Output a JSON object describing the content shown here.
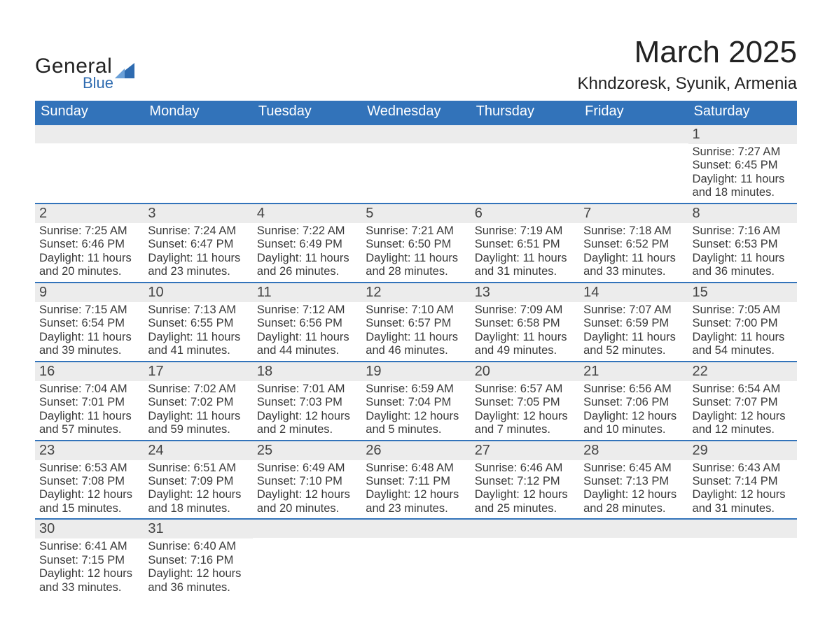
{
  "logo": {
    "word1": "General",
    "word2": "Blue",
    "accent_color": "#2e6bb0"
  },
  "title": "March 2025",
  "location": "Khndzoresk, Syunik, Armenia",
  "colors": {
    "header_bg": "#3273ba",
    "header_fg": "#ffffff",
    "daynum_bg": "#ececec",
    "row_border": "#3273ba",
    "text": "#3a3a3a"
  },
  "typography": {
    "title_fontsize": 44,
    "location_fontsize": 24,
    "header_fontsize": 20,
    "cell_fontsize": 16.5
  },
  "day_headers": [
    "Sunday",
    "Monday",
    "Tuesday",
    "Wednesday",
    "Thursday",
    "Friday",
    "Saturday"
  ],
  "weeks": [
    [
      {
        "n": "",
        "sr": "",
        "ss": "",
        "dl1": "",
        "dl2": ""
      },
      {
        "n": "",
        "sr": "",
        "ss": "",
        "dl1": "",
        "dl2": ""
      },
      {
        "n": "",
        "sr": "",
        "ss": "",
        "dl1": "",
        "dl2": ""
      },
      {
        "n": "",
        "sr": "",
        "ss": "",
        "dl1": "",
        "dl2": ""
      },
      {
        "n": "",
        "sr": "",
        "ss": "",
        "dl1": "",
        "dl2": ""
      },
      {
        "n": "",
        "sr": "",
        "ss": "",
        "dl1": "",
        "dl2": ""
      },
      {
        "n": "1",
        "sr": "Sunrise: 7:27 AM",
        "ss": "Sunset: 6:45 PM",
        "dl1": "Daylight: 11 hours",
        "dl2": "and 18 minutes."
      }
    ],
    [
      {
        "n": "2",
        "sr": "Sunrise: 7:25 AM",
        "ss": "Sunset: 6:46 PM",
        "dl1": "Daylight: 11 hours",
        "dl2": "and 20 minutes."
      },
      {
        "n": "3",
        "sr": "Sunrise: 7:24 AM",
        "ss": "Sunset: 6:47 PM",
        "dl1": "Daylight: 11 hours",
        "dl2": "and 23 minutes."
      },
      {
        "n": "4",
        "sr": "Sunrise: 7:22 AM",
        "ss": "Sunset: 6:49 PM",
        "dl1": "Daylight: 11 hours",
        "dl2": "and 26 minutes."
      },
      {
        "n": "5",
        "sr": "Sunrise: 7:21 AM",
        "ss": "Sunset: 6:50 PM",
        "dl1": "Daylight: 11 hours",
        "dl2": "and 28 minutes."
      },
      {
        "n": "6",
        "sr": "Sunrise: 7:19 AM",
        "ss": "Sunset: 6:51 PM",
        "dl1": "Daylight: 11 hours",
        "dl2": "and 31 minutes."
      },
      {
        "n": "7",
        "sr": "Sunrise: 7:18 AM",
        "ss": "Sunset: 6:52 PM",
        "dl1": "Daylight: 11 hours",
        "dl2": "and 33 minutes."
      },
      {
        "n": "8",
        "sr": "Sunrise: 7:16 AM",
        "ss": "Sunset: 6:53 PM",
        "dl1": "Daylight: 11 hours",
        "dl2": "and 36 minutes."
      }
    ],
    [
      {
        "n": "9",
        "sr": "Sunrise: 7:15 AM",
        "ss": "Sunset: 6:54 PM",
        "dl1": "Daylight: 11 hours",
        "dl2": "and 39 minutes."
      },
      {
        "n": "10",
        "sr": "Sunrise: 7:13 AM",
        "ss": "Sunset: 6:55 PM",
        "dl1": "Daylight: 11 hours",
        "dl2": "and 41 minutes."
      },
      {
        "n": "11",
        "sr": "Sunrise: 7:12 AM",
        "ss": "Sunset: 6:56 PM",
        "dl1": "Daylight: 11 hours",
        "dl2": "and 44 minutes."
      },
      {
        "n": "12",
        "sr": "Sunrise: 7:10 AM",
        "ss": "Sunset: 6:57 PM",
        "dl1": "Daylight: 11 hours",
        "dl2": "and 46 minutes."
      },
      {
        "n": "13",
        "sr": "Sunrise: 7:09 AM",
        "ss": "Sunset: 6:58 PM",
        "dl1": "Daylight: 11 hours",
        "dl2": "and 49 minutes."
      },
      {
        "n": "14",
        "sr": "Sunrise: 7:07 AM",
        "ss": "Sunset: 6:59 PM",
        "dl1": "Daylight: 11 hours",
        "dl2": "and 52 minutes."
      },
      {
        "n": "15",
        "sr": "Sunrise: 7:05 AM",
        "ss": "Sunset: 7:00 PM",
        "dl1": "Daylight: 11 hours",
        "dl2": "and 54 minutes."
      }
    ],
    [
      {
        "n": "16",
        "sr": "Sunrise: 7:04 AM",
        "ss": "Sunset: 7:01 PM",
        "dl1": "Daylight: 11 hours",
        "dl2": "and 57 minutes."
      },
      {
        "n": "17",
        "sr": "Sunrise: 7:02 AM",
        "ss": "Sunset: 7:02 PM",
        "dl1": "Daylight: 11 hours",
        "dl2": "and 59 minutes."
      },
      {
        "n": "18",
        "sr": "Sunrise: 7:01 AM",
        "ss": "Sunset: 7:03 PM",
        "dl1": "Daylight: 12 hours",
        "dl2": "and 2 minutes."
      },
      {
        "n": "19",
        "sr": "Sunrise: 6:59 AM",
        "ss": "Sunset: 7:04 PM",
        "dl1": "Daylight: 12 hours",
        "dl2": "and 5 minutes."
      },
      {
        "n": "20",
        "sr": "Sunrise: 6:57 AM",
        "ss": "Sunset: 7:05 PM",
        "dl1": "Daylight: 12 hours",
        "dl2": "and 7 minutes."
      },
      {
        "n": "21",
        "sr": "Sunrise: 6:56 AM",
        "ss": "Sunset: 7:06 PM",
        "dl1": "Daylight: 12 hours",
        "dl2": "and 10 minutes."
      },
      {
        "n": "22",
        "sr": "Sunrise: 6:54 AM",
        "ss": "Sunset: 7:07 PM",
        "dl1": "Daylight: 12 hours",
        "dl2": "and 12 minutes."
      }
    ],
    [
      {
        "n": "23",
        "sr": "Sunrise: 6:53 AM",
        "ss": "Sunset: 7:08 PM",
        "dl1": "Daylight: 12 hours",
        "dl2": "and 15 minutes."
      },
      {
        "n": "24",
        "sr": "Sunrise: 6:51 AM",
        "ss": "Sunset: 7:09 PM",
        "dl1": "Daylight: 12 hours",
        "dl2": "and 18 minutes."
      },
      {
        "n": "25",
        "sr": "Sunrise: 6:49 AM",
        "ss": "Sunset: 7:10 PM",
        "dl1": "Daylight: 12 hours",
        "dl2": "and 20 minutes."
      },
      {
        "n": "26",
        "sr": "Sunrise: 6:48 AM",
        "ss": "Sunset: 7:11 PM",
        "dl1": "Daylight: 12 hours",
        "dl2": "and 23 minutes."
      },
      {
        "n": "27",
        "sr": "Sunrise: 6:46 AM",
        "ss": "Sunset: 7:12 PM",
        "dl1": "Daylight: 12 hours",
        "dl2": "and 25 minutes."
      },
      {
        "n": "28",
        "sr": "Sunrise: 6:45 AM",
        "ss": "Sunset: 7:13 PM",
        "dl1": "Daylight: 12 hours",
        "dl2": "and 28 minutes."
      },
      {
        "n": "29",
        "sr": "Sunrise: 6:43 AM",
        "ss": "Sunset: 7:14 PM",
        "dl1": "Daylight: 12 hours",
        "dl2": "and 31 minutes."
      }
    ],
    [
      {
        "n": "30",
        "sr": "Sunrise: 6:41 AM",
        "ss": "Sunset: 7:15 PM",
        "dl1": "Daylight: 12 hours",
        "dl2": "and 33 minutes."
      },
      {
        "n": "31",
        "sr": "Sunrise: 6:40 AM",
        "ss": "Sunset: 7:16 PM",
        "dl1": "Daylight: 12 hours",
        "dl2": "and 36 minutes."
      },
      {
        "n": "",
        "sr": "",
        "ss": "",
        "dl1": "",
        "dl2": ""
      },
      {
        "n": "",
        "sr": "",
        "ss": "",
        "dl1": "",
        "dl2": ""
      },
      {
        "n": "",
        "sr": "",
        "ss": "",
        "dl1": "",
        "dl2": ""
      },
      {
        "n": "",
        "sr": "",
        "ss": "",
        "dl1": "",
        "dl2": ""
      },
      {
        "n": "",
        "sr": "",
        "ss": "",
        "dl1": "",
        "dl2": ""
      }
    ]
  ]
}
